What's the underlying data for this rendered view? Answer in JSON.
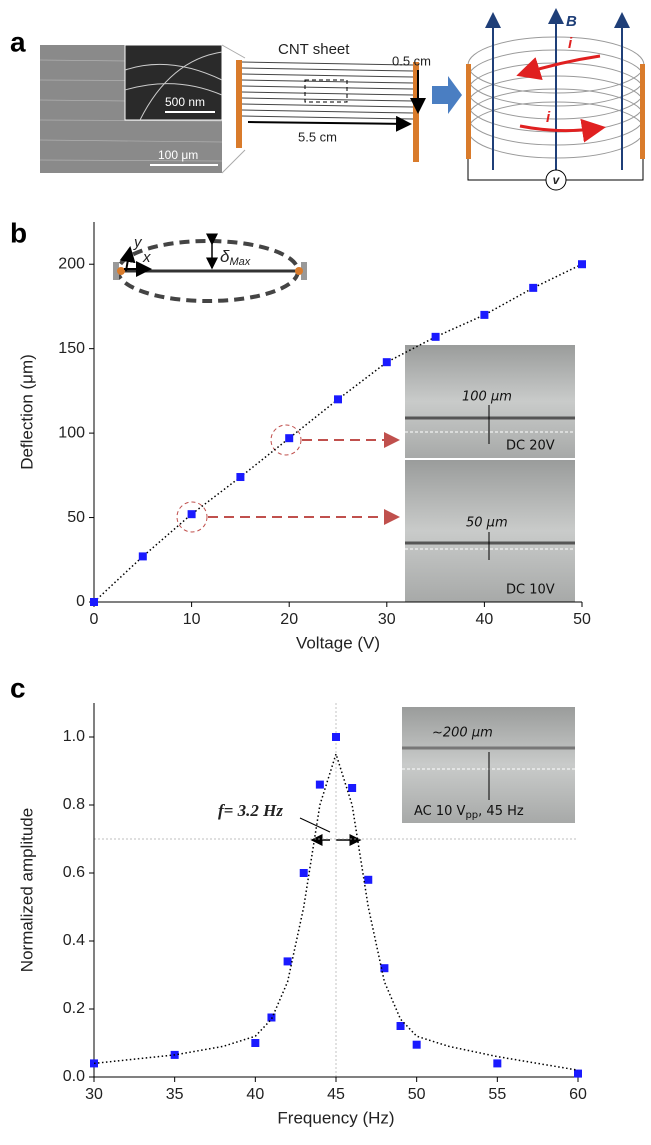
{
  "panel_a": {
    "label": "a",
    "sem_scale_inset": "500 nm",
    "sem_scale": "100 μm",
    "sheet_label": "CNT sheet",
    "width": "0.5 cm",
    "length": "5.5 cm",
    "field": "B",
    "current_top": "i",
    "current_bottom": "i",
    "voltmeter": "v"
  },
  "chart_data": [
    {
      "type": "scatter",
      "panel_label": "b",
      "x_label": "Voltage (V)",
      "y_label": "Deflection (μm)",
      "x": [
        0,
        5,
        10,
        15,
        20,
        25,
        30,
        35,
        40,
        45,
        50
      ],
      "series": [
        {
          "color": "#1a1aff",
          "marker": "square",
          "line": "dotted",
          "values": [
            0,
            27,
            52,
            74,
            97,
            120,
            142,
            157,
            170,
            186,
            200
          ]
        }
      ],
      "xlim": [
        0,
        50
      ],
      "ylim": [
        0,
        225
      ],
      "xticks": [
        0,
        10,
        20,
        30,
        40,
        50
      ],
      "yticks": [
        0,
        50,
        100,
        150,
        200
      ],
      "annotations": {
        "beam_y": "y",
        "beam_x": "x",
        "beam_delta": "δ",
        "beam_delta_sub": "Max",
        "top_size": "100 μm",
        "top_condition": "DC 20V",
        "bottom_size": "50 μm",
        "bottom_condition": "DC 10V"
      }
    },
    {
      "type": "scatter",
      "panel_label": "c",
      "x_label": "Frequency (Hz)",
      "y_label": "Normalized amplitude",
      "x": [
        30,
        35,
        40,
        41,
        42,
        43,
        44,
        45,
        46,
        47,
        48,
        49,
        50,
        55,
        60
      ],
      "series": [
        {
          "color": "#1a1aff",
          "marker": "square",
          "values": [
            0.04,
            0.065,
            0.1,
            0.175,
            0.34,
            0.6,
            0.86,
            1.0,
            0.85,
            0.58,
            0.32,
            0.15,
            0.095,
            0.04,
            0.01
          ]
        },
        {
          "color": "#000000",
          "line": "dotted",
          "x": [
            30,
            35,
            38,
            40,
            41,
            42,
            43,
            44,
            45,
            46,
            47,
            48,
            49,
            50,
            52,
            55,
            60
          ],
          "values": [
            0.04,
            0.065,
            0.09,
            0.12,
            0.17,
            0.28,
            0.5,
            0.8,
            0.95,
            0.8,
            0.5,
            0.28,
            0.17,
            0.12,
            0.09,
            0.06,
            0.02
          ]
        }
      ],
      "xlim": [
        30,
        60
      ],
      "ylim": [
        0,
        1.1
      ],
      "xticks": [
        30,
        35,
        40,
        45,
        50,
        55,
        60
      ],
      "yticks": [
        {
          "value": 0,
          "label": "0.0"
        },
        0.2,
        0.4,
        0.6,
        0.8,
        {
          "value": 1,
          "label": "1.0"
        }
      ],
      "vline": 45,
      "hline": 0.7,
      "annotations": {
        "bandwidth": "f= 3.2 Hz",
        "size": "~200 μm",
        "condition": "AC 10 V",
        "condition_sub": "pp",
        "condition_tail": ", 45 Hz"
      }
    }
  ]
}
